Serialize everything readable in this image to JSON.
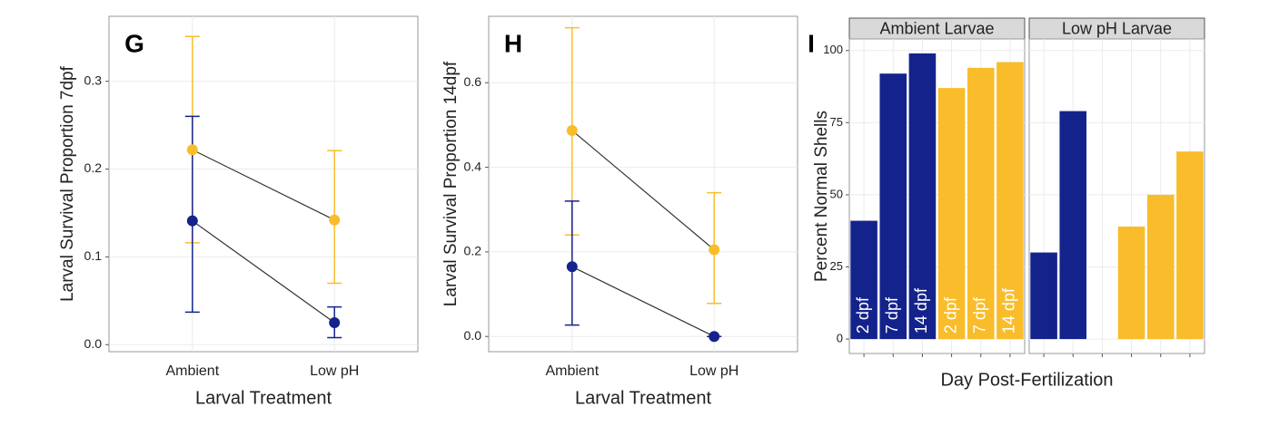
{
  "chart_data": [
    {
      "type": "line",
      "panel_label": "G",
      "x_label": "Larval Treatment",
      "y_label": "Larval Survival Proportion 7dpf",
      "categories": [
        "Ambient",
        "Low pH"
      ],
      "series": [
        {
          "color": "#f9bd2b",
          "values": [
            0.222,
            0.142
          ],
          "lower": [
            0.116,
            0.07
          ],
          "upper": [
            0.351,
            0.221
          ]
        },
        {
          "color": "#14238c",
          "values": [
            0.141,
            0.025
          ],
          "lower": [
            0.037,
            0.008
          ],
          "upper": [
            0.26,
            0.043
          ]
        }
      ],
      "ylim": [
        -0.008,
        0.374
      ],
      "yticks": [
        {
          "value": 0,
          "label": "0.0"
        },
        0.1,
        0.2,
        0.3
      ],
      "grid": true
    },
    {
      "type": "line",
      "panel_label": "H",
      "x_label": "Larval Treatment",
      "y_label": "Larval Survival Proportion 14dpf",
      "categories": [
        "Ambient",
        "Low pH"
      ],
      "series": [
        {
          "color": "#f9bd2b",
          "values": [
            0.487,
            0.205
          ],
          "lower": [
            0.24,
            0.078
          ],
          "upper": [
            0.73,
            0.34
          ]
        },
        {
          "color": "#14238c",
          "values": [
            0.165,
            0.0
          ],
          "lower": [
            0.027,
            0.0
          ],
          "upper": [
            0.32,
            0.0
          ]
        }
      ],
      "ylim": [
        -0.036,
        0.757
      ],
      "yticks": [
        {
          "value": 0,
          "label": "0.0"
        },
        0.2,
        0.4,
        0.6
      ],
      "grid": true
    },
    {
      "type": "facet-bar",
      "panel_label": "I",
      "x_label": "Day Post-Fertilization",
      "y_label": "Percent Normal Shells",
      "colors": [
        "#14238c",
        "#14238c",
        "#14238c",
        "#f9bd2b",
        "#f9bd2b",
        "#f9bd2b"
      ],
      "facets": [
        {
          "title": "Ambient Larvae",
          "values": [
            41,
            92,
            99,
            87,
            94,
            96
          ],
          "bar_labels": [
            "2 dpf",
            "7 dpf",
            "14 dpf",
            "2 dpf",
            "7 dpf",
            "14 dpf"
          ]
        },
        {
          "title": "Low pH Larvae",
          "values": [
            30,
            79,
            null,
            39,
            50,
            65
          ]
        }
      ],
      "ylim": [
        -5,
        104
      ],
      "yticks": [
        0,
        25,
        50,
        75,
        100
      ],
      "grid": true
    }
  ]
}
